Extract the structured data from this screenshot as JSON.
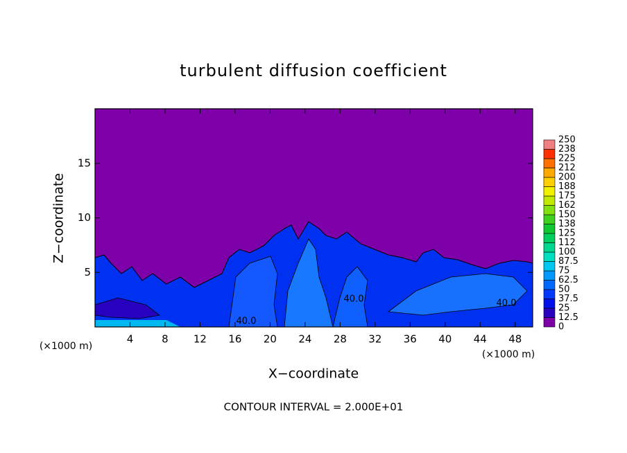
{
  "chart_data": {
    "type": "contour",
    "title": "turbulent diffusion coefficient",
    "xlabel": "X−coordinate",
    "ylabel": "Z−coordinate",
    "xunit": "(×1000 m)",
    "yunit": "(×1000 m)",
    "xlim": [
      0,
      50
    ],
    "xticks": [
      4,
      8,
      12,
      16,
      20,
      24,
      28,
      32,
      36,
      40,
      44,
      48
    ],
    "ylim": [
      0,
      20
    ],
    "yticks": [
      5,
      10,
      15
    ],
    "annotation": "CONTOUR INTERVAL = 2.000E+01",
    "contour_labels": [
      "40.0",
      "40.0",
      "40.0"
    ],
    "colorbar": {
      "levels": [
        0,
        12.5,
        25,
        37.5,
        50,
        62.5,
        75,
        87.5,
        100,
        112,
        125,
        138,
        150,
        162,
        175,
        188,
        200,
        212,
        225,
        238,
        250
      ],
      "colors": [
        "#7d00a8",
        "#2800c0",
        "#0010e8",
        "#0038ff",
        "#0068ff",
        "#0098ff",
        "#00c8f0",
        "#00e0c0",
        "#00d890",
        "#00d060",
        "#10c830",
        "#40d020",
        "#80e010",
        "#c0e800",
        "#f0f000",
        "#ffd000",
        "#ffa800",
        "#ff7000",
        "#ff3000",
        "#f08080"
      ]
    }
  }
}
